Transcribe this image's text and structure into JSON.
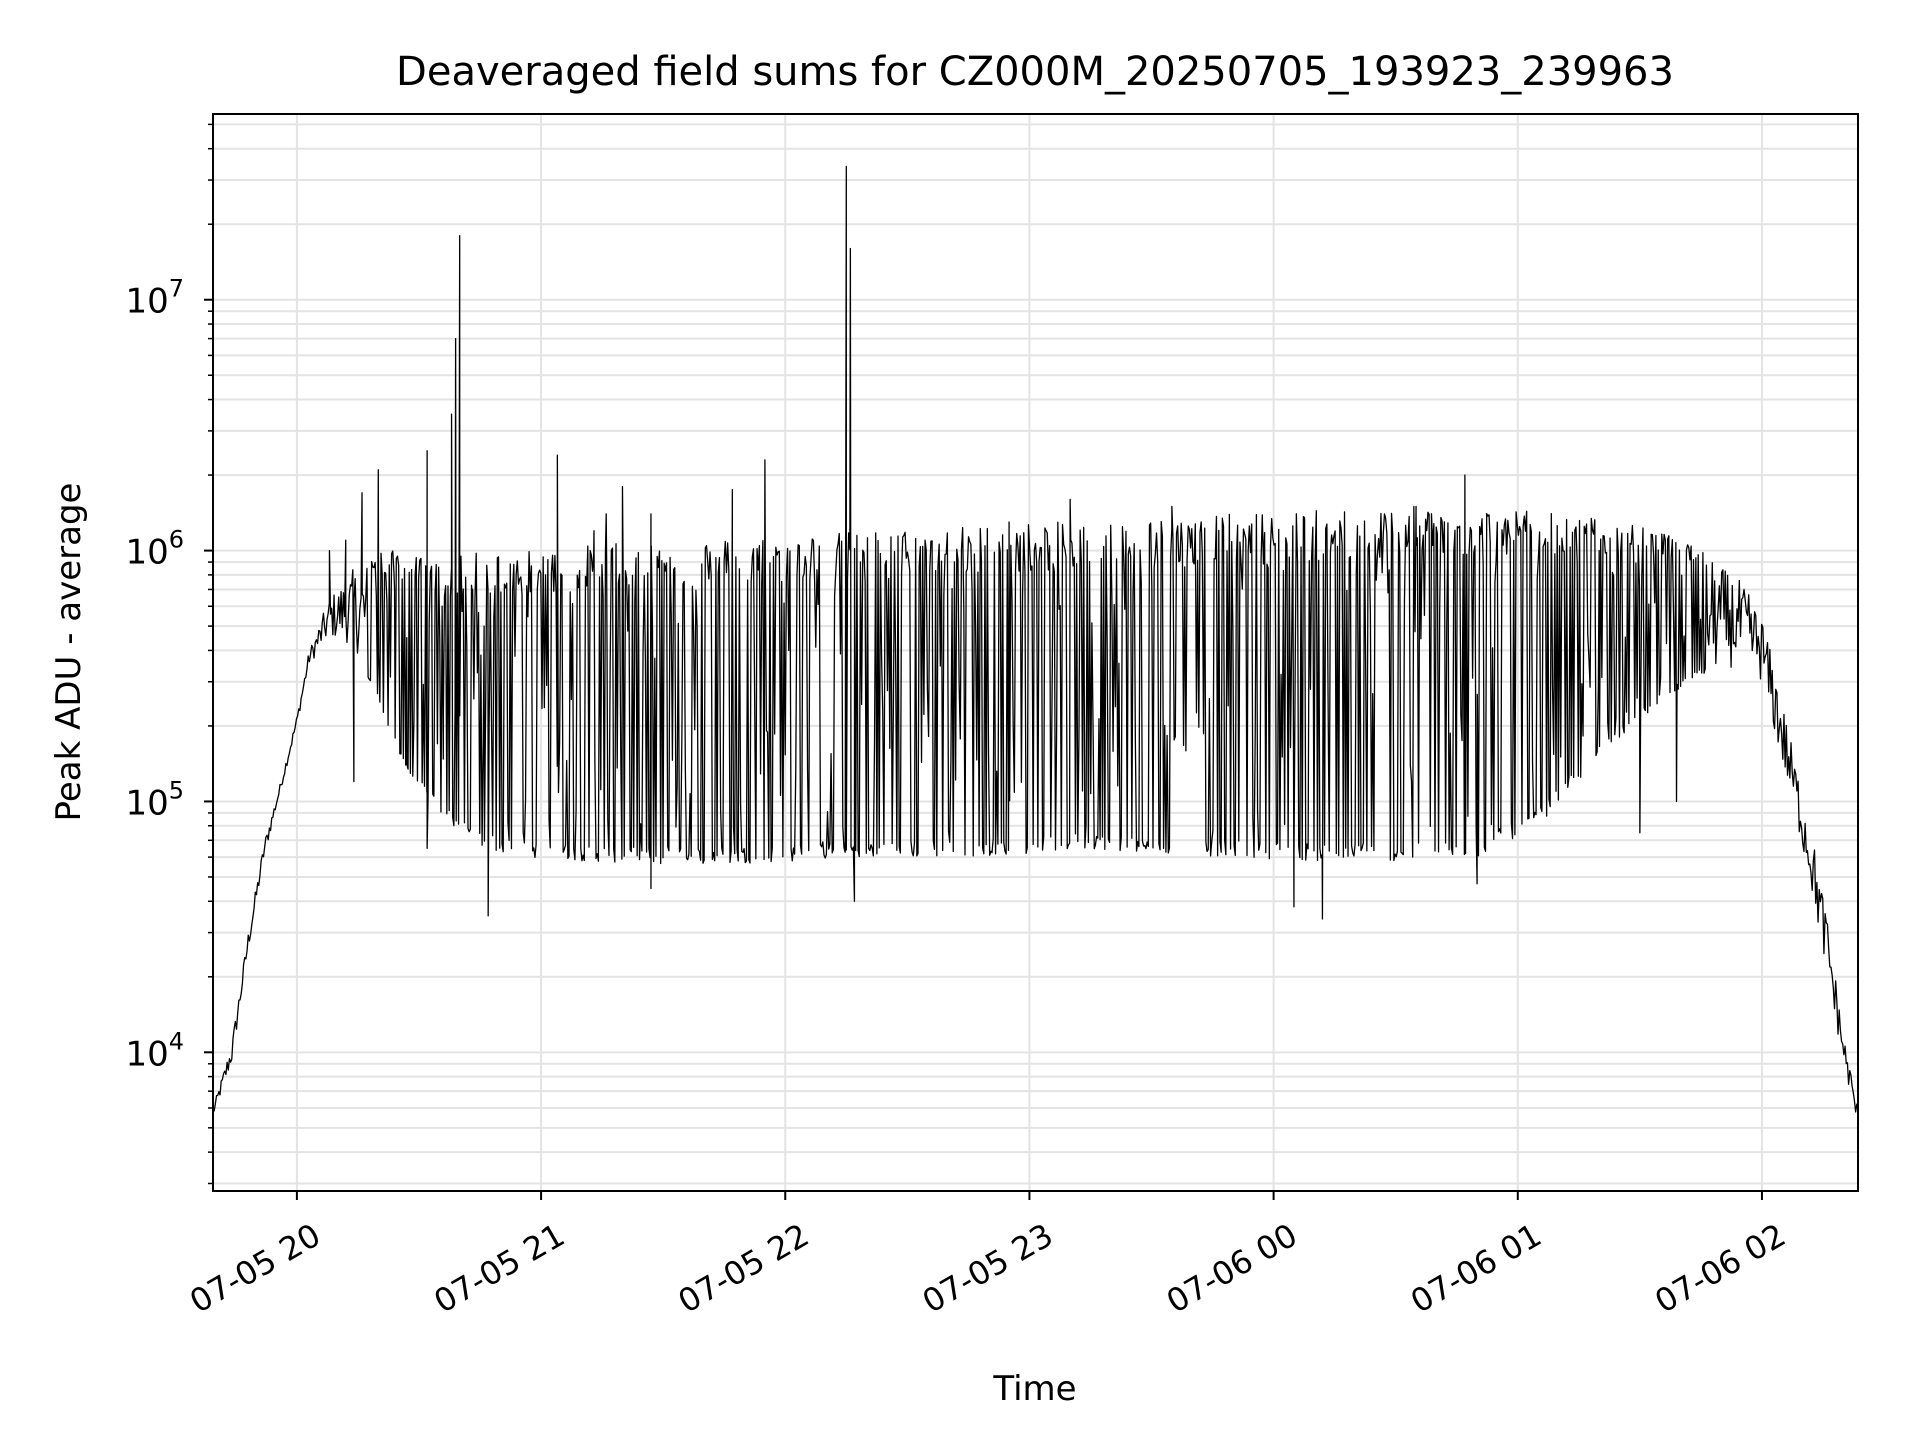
{
  "chart_data": {
    "type": "line",
    "title": "Deaveraged field sums for CZ000M_20250705_193923_239963",
    "xlabel": "Time",
    "ylabel": "Peak ADU - average",
    "y_scale": "log",
    "ylim": [
      2800,
      55000000
    ],
    "xlim": [
      "2025-07-05 19:39:23",
      "2025-07-06 02:23:36"
    ],
    "grid": true,
    "line_color": "#000000",
    "x_ticks": [
      {
        "value": "2025-07-05 20:00",
        "label": "07-05 20"
      },
      {
        "value": "2025-07-05 21:00",
        "label": "07-05 21"
      },
      {
        "value": "2025-07-05 22:00",
        "label": "07-05 22"
      },
      {
        "value": "2025-07-05 23:00",
        "label": "07-05 23"
      },
      {
        "value": "2025-07-06 00:00",
        "label": "07-06 00"
      },
      {
        "value": "2025-07-06 01:00",
        "label": "07-06 01"
      },
      {
        "value": "2025-07-06 02:00",
        "label": "07-06 02"
      }
    ],
    "y_ticks": [
      {
        "value": 10000,
        "base": "10",
        "exp": "4"
      },
      {
        "value": 100000,
        "base": "10",
        "exp": "5"
      },
      {
        "value": 1000000,
        "base": "10",
        "exp": "6"
      },
      {
        "value": 10000000,
        "base": "10",
        "exp": "7"
      }
    ],
    "envelope": {
      "x": [
        "2025-07-05 19:39:23",
        "2025-07-05 19:44:00",
        "2025-07-05 19:48:00",
        "2025-07-05 19:52:00",
        "2025-07-05 19:56:00",
        "2025-07-05 20:00:00",
        "2025-07-05 20:03:00",
        "2025-07-05 20:08:00",
        "2025-07-05 20:14:00",
        "2025-07-05 20:20:00",
        "2025-07-05 20:25:00",
        "2025-07-05 20:30:00",
        "2025-07-05 20:35:00",
        "2025-07-05 20:40:00",
        "2025-07-05 20:46:00",
        "2025-07-05 20:55:00",
        "2025-07-05 21:10:00",
        "2025-07-05 21:30:00",
        "2025-07-05 21:55:00",
        "2025-07-05 22:20:00",
        "2025-07-05 22:40:00",
        "2025-07-05 23:00:00",
        "2025-07-05 23:15:00",
        "2025-07-05 23:30:00",
        "2025-07-05 23:50:00",
        "2025-07-06 00:10:00",
        "2025-07-06 00:30:00",
        "2025-07-06 00:50:00",
        "2025-07-06 01:05:00",
        "2025-07-06 01:20:00",
        "2025-07-06 01:35:00",
        "2025-07-06 01:45:00",
        "2025-07-06 01:55:00",
        "2025-07-06 02:00:00",
        "2025-07-06 02:04:00",
        "2025-07-06 02:08:00",
        "2025-07-06 02:12:00",
        "2025-07-06 02:16:00",
        "2025-07-06 02:20:00",
        "2025-07-06 02:23:36"
      ],
      "high": [
        6000,
        11000,
        30000,
        70000,
        120000,
        220000,
        400000,
        650000,
        850000,
        1000000,
        1000000,
        950000,
        900000,
        950000,
        1000000,
        1000000,
        1050000,
        1100000,
        1150000,
        1200000,
        1250000,
        1300000,
        1300000,
        1350000,
        1400000,
        1450000,
        1500000,
        1500000,
        1450000,
        1350000,
        1200000,
        1000000,
        750000,
        550000,
        300000,
        150000,
        80000,
        35000,
        12000,
        6000
      ],
      "low": [
        5500,
        9000,
        25000,
        60000,
        110000,
        200000,
        350000,
        450000,
        420000,
        250000,
        150000,
        110000,
        90000,
        75000,
        65000,
        60000,
        58000,
        56000,
        57000,
        60000,
        60000,
        62000,
        65000,
        62000,
        60000,
        58000,
        58000,
        60000,
        80000,
        150000,
        250000,
        320000,
        350000,
        300000,
        160000,
        90000,
        45000,
        20000,
        9000,
        5000
      ]
    },
    "spikes": [
      {
        "x": "2025-07-05 20:08:00",
        "y": 1000000
      },
      {
        "x": "2025-07-05 20:12:00",
        "y": 1100000
      },
      {
        "x": "2025-07-05 20:16:00",
        "y": 1700000
      },
      {
        "x": "2025-07-05 20:20:00",
        "y": 2100000
      },
      {
        "x": "2025-07-05 20:24:00",
        "y": 700000
      },
      {
        "x": "2025-07-05 20:27:00",
        "y": 450000
      },
      {
        "x": "2025-07-05 20:32:00",
        "y": 2500000
      },
      {
        "x": "2025-07-05 20:36:00",
        "y": 230000
      },
      {
        "x": "2025-07-05 20:38:00",
        "y": 3500000
      },
      {
        "x": "2025-07-05 20:39:00",
        "y": 7000000
      },
      {
        "x": "2025-07-05 20:40:00",
        "y": 18000000
      },
      {
        "x": "2025-07-05 20:43:00",
        "y": 700000
      },
      {
        "x": "2025-07-05 20:46:00",
        "y": 500000
      },
      {
        "x": "2025-07-05 21:04:00",
        "y": 2400000
      },
      {
        "x": "2025-07-05 21:13:00",
        "y": 1200000
      },
      {
        "x": "2025-07-05 21:16:00",
        "y": 1400000
      },
      {
        "x": "2025-07-05 21:20:00",
        "y": 1800000
      },
      {
        "x": "2025-07-05 21:27:00",
        "y": 1400000
      },
      {
        "x": "2025-07-05 21:47:00",
        "y": 1750000
      },
      {
        "x": "2025-07-05 21:55:00",
        "y": 2300000
      },
      {
        "x": "2025-07-05 22:15:00",
        "y": 34000000
      },
      {
        "x": "2025-07-05 22:16:00",
        "y": 16000000
      },
      {
        "x": "2025-07-05 22:55:00",
        "y": 1300000
      },
      {
        "x": "2025-07-05 23:10:00",
        "y": 1600000
      },
      {
        "x": "2025-07-05 23:35:00",
        "y": 1500000
      },
      {
        "x": "2025-07-06 00:35:00",
        "y": 1500000
      },
      {
        "x": "2025-07-06 00:47:00",
        "y": 2000000
      },
      {
        "x": "2025-07-06 01:20:00",
        "y": 1000000
      }
    ],
    "dips": [
      {
        "x": "2025-07-05 20:14:00",
        "y": 120000
      },
      {
        "x": "2025-07-05 20:32:00",
        "y": 65000
      },
      {
        "x": "2025-07-05 20:47:00",
        "y": 35000
      },
      {
        "x": "2025-07-05 21:27:00",
        "y": 45000
      },
      {
        "x": "2025-07-05 22:17:00",
        "y": 40000
      },
      {
        "x": "2025-07-06 00:05:00",
        "y": 38000
      },
      {
        "x": "2025-07-06 00:12:00",
        "y": 34000
      },
      {
        "x": "2025-07-06 00:50:00",
        "y": 47000
      },
      {
        "x": "2025-07-06 01:30:00",
        "y": 75000
      },
      {
        "x": "2025-07-06 01:39:00",
        "y": 100000
      }
    ]
  }
}
